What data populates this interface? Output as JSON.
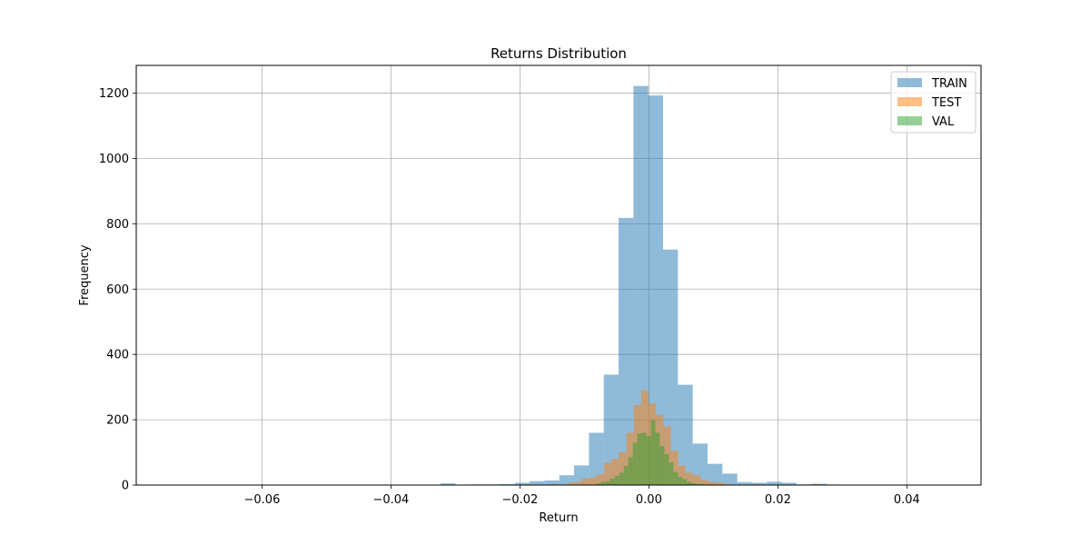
{
  "chart_data": {
    "type": "histogram",
    "title": "Returns Distribution",
    "xlabel": "Return",
    "ylabel": "Frequency",
    "xlim": [
      -0.0795,
      0.0515
    ],
    "ylim": [
      0,
      1285
    ],
    "xticks": [
      -0.06,
      -0.04,
      -0.02,
      0.0,
      0.02,
      0.04
    ],
    "xtick_labels": [
      "−0.06",
      "−0.04",
      "−0.02",
      "0.00",
      "0.02",
      "0.04"
    ],
    "yticks": [
      0,
      200,
      400,
      600,
      800,
      1000,
      1200
    ],
    "ytick_labels": [
      "0",
      "200",
      "400",
      "600",
      "800",
      "1000",
      "1200"
    ],
    "grid": true,
    "legend_position": "top-right",
    "series": [
      {
        "name": "TRAIN",
        "color": "#1f77b4",
        "alpha": 0.5,
        "bin_width": 0.0023,
        "bins": [
          {
            "x": -0.0735,
            "y": 1
          },
          {
            "x": -0.0507,
            "y": 1
          },
          {
            "x": -0.0461,
            "y": 1
          },
          {
            "x": -0.0415,
            "y": 1
          },
          {
            "x": -0.0369,
            "y": 1
          },
          {
            "x": -0.0323,
            "y": 5
          },
          {
            "x": -0.0277,
            "y": 2
          },
          {
            "x": -0.0254,
            "y": 2
          },
          {
            "x": -0.0231,
            "y": 3
          },
          {
            "x": -0.0208,
            "y": 7
          },
          {
            "x": -0.0185,
            "y": 12
          },
          {
            "x": -0.0162,
            "y": 14
          },
          {
            "x": -0.0139,
            "y": 30
          },
          {
            "x": -0.0116,
            "y": 60
          },
          {
            "x": -0.0093,
            "y": 160
          },
          {
            "x": -0.007,
            "y": 338
          },
          {
            "x": -0.0047,
            "y": 818
          },
          {
            "x": -0.0024,
            "y": 1222
          },
          {
            "x": -0.0001,
            "y": 1193
          },
          {
            "x": 0.0022,
            "y": 721
          },
          {
            "x": 0.0045,
            "y": 307
          },
          {
            "x": 0.0068,
            "y": 127
          },
          {
            "x": 0.0091,
            "y": 65
          },
          {
            "x": 0.0114,
            "y": 35
          },
          {
            "x": 0.0137,
            "y": 9
          },
          {
            "x": 0.016,
            "y": 7
          },
          {
            "x": 0.0183,
            "y": 10
          },
          {
            "x": 0.0206,
            "y": 7
          },
          {
            "x": 0.0229,
            "y": 2
          },
          {
            "x": 0.0252,
            "y": 4
          },
          {
            "x": 0.0275,
            "y": 1
          },
          {
            "x": 0.0298,
            "y": 1
          },
          {
            "x": 0.0344,
            "y": 1
          },
          {
            "x": 0.039,
            "y": 1
          },
          {
            "x": 0.0436,
            "y": 1
          }
        ]
      },
      {
        "name": "TEST",
        "color": "#ff7f0e",
        "alpha": 0.5,
        "bin_width": 0.00115,
        "bins": [
          {
            "x": -0.0265,
            "y": 1
          },
          {
            "x": -0.0219,
            "y": 1
          },
          {
            "x": -0.0196,
            "y": 2
          },
          {
            "x": -0.0173,
            "y": 2
          },
          {
            "x": -0.015,
            "y": 3
          },
          {
            "x": -0.0127,
            "y": 7
          },
          {
            "x": -0.01155,
            "y": 10
          },
          {
            "x": -0.0104,
            "y": 20
          },
          {
            "x": -0.00925,
            "y": 23
          },
          {
            "x": -0.0081,
            "y": 33
          },
          {
            "x": -0.00695,
            "y": 68
          },
          {
            "x": -0.0058,
            "y": 80
          },
          {
            "x": -0.00465,
            "y": 100
          },
          {
            "x": -0.0035,
            "y": 160
          },
          {
            "x": -0.00235,
            "y": 245
          },
          {
            "x": -0.0012,
            "y": 290
          },
          {
            "x": -5e-05,
            "y": 250
          },
          {
            "x": 0.0011,
            "y": 215
          },
          {
            "x": 0.00225,
            "y": 180
          },
          {
            "x": 0.0034,
            "y": 105
          },
          {
            "x": 0.00455,
            "y": 60
          },
          {
            "x": 0.0057,
            "y": 38
          },
          {
            "x": 0.00685,
            "y": 30
          },
          {
            "x": 0.008,
            "y": 16
          },
          {
            "x": 0.00915,
            "y": 10
          },
          {
            "x": 0.0103,
            "y": 8
          },
          {
            "x": 0.01145,
            "y": 4
          },
          {
            "x": 0.0138,
            "y": 2
          },
          {
            "x": 0.0161,
            "y": 3
          },
          {
            "x": 0.0207,
            "y": 2
          },
          {
            "x": 0.0253,
            "y": 3
          },
          {
            "x": 0.0276,
            "y": 2
          },
          {
            "x": 0.0299,
            "y": 1
          }
        ]
      },
      {
        "name": "VAL",
        "color": "#2ca02c",
        "alpha": 0.5,
        "bin_width": 0.00069,
        "bins": [
          {
            "x": -0.0127,
            "y": 1
          },
          {
            "x": -0.0104,
            "y": 2
          },
          {
            "x": -0.0081,
            "y": 5
          },
          {
            "x": -0.0074,
            "y": 10
          },
          {
            "x": -0.0067,
            "y": 12
          },
          {
            "x": -0.006,
            "y": 20
          },
          {
            "x": -0.0053,
            "y": 28
          },
          {
            "x": -0.0046,
            "y": 38
          },
          {
            "x": -0.0039,
            "y": 58
          },
          {
            "x": -0.0032,
            "y": 85
          },
          {
            "x": -0.0025,
            "y": 130
          },
          {
            "x": -0.0018,
            "y": 158
          },
          {
            "x": -0.0011,
            "y": 160
          },
          {
            "x": -0.0004,
            "y": 150
          },
          {
            "x": 0.0003,
            "y": 198
          },
          {
            "x": 0.001,
            "y": 160
          },
          {
            "x": 0.0017,
            "y": 120
          },
          {
            "x": 0.0024,
            "y": 95
          },
          {
            "x": 0.0031,
            "y": 70
          },
          {
            "x": 0.0038,
            "y": 40
          },
          {
            "x": 0.0045,
            "y": 25
          },
          {
            "x": 0.0052,
            "y": 18
          },
          {
            "x": 0.0059,
            "y": 10
          },
          {
            "x": 0.0066,
            "y": 6
          },
          {
            "x": 0.0073,
            "y": 4
          },
          {
            "x": 0.008,
            "y": 3
          },
          {
            "x": 0.0094,
            "y": 2
          },
          {
            "x": 0.0108,
            "y": 1
          }
        ]
      }
    ]
  }
}
